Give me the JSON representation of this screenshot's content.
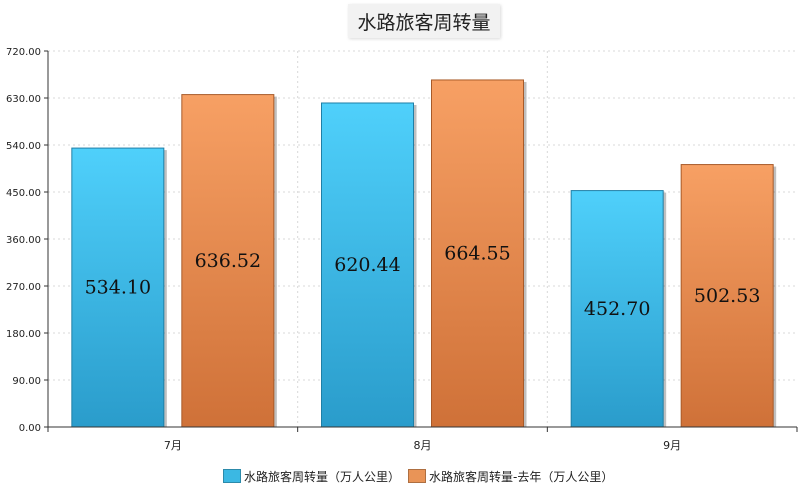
{
  "chart_data": {
    "type": "bar",
    "title": "水路旅客周转量",
    "categories": [
      "7月",
      "8月",
      "9月"
    ],
    "series": [
      {
        "name": "水路旅客周转量（万人公里）",
        "values": [
          534.1,
          620.44,
          452.7
        ],
        "color": "#3bb8e3"
      },
      {
        "name": "水路旅客周转量-去年（万人公里）",
        "values": [
          636.52,
          664.55,
          502.53
        ],
        "color": "#e99457"
      }
    ],
    "data_labels": [
      [
        "534.10",
        "620.44",
        "452.70"
      ],
      [
        "636.52",
        "664.55",
        "502.53"
      ]
    ],
    "ylim": [
      0,
      720
    ],
    "yticks": [
      "0.00",
      "90.00",
      "180.00",
      "270.00",
      "360.00",
      "450.00",
      "540.00",
      "630.00",
      "720.00"
    ],
    "grid": true,
    "legend_position": "bottom"
  }
}
